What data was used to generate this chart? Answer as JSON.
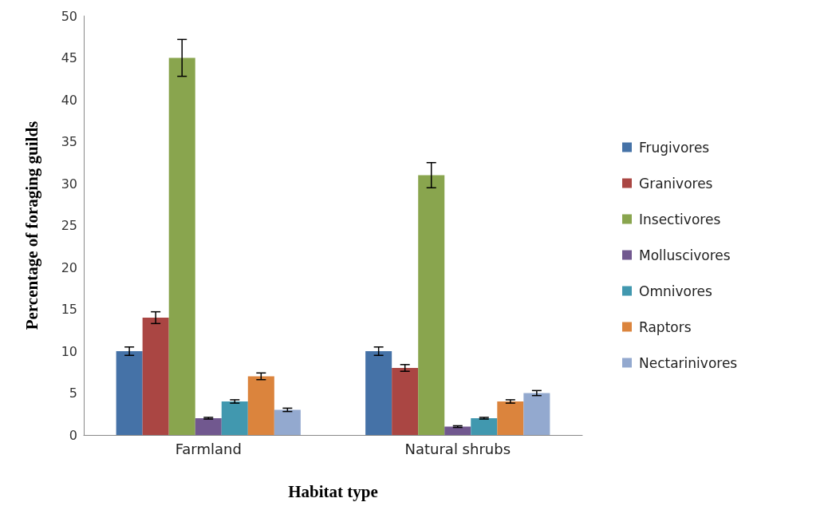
{
  "chart_data": {
    "type": "bar",
    "xlabel": "Habitat type",
    "ylabel": "Percentage of foraging guilds",
    "categories": [
      "Farmland",
      "Natural shrubs"
    ],
    "series": [
      {
        "name": "Frugivores",
        "color": "#4572a7",
        "values": [
          10,
          10
        ],
        "errors": [
          0.5,
          0.5
        ]
      },
      {
        "name": "Granivores",
        "color": "#aa4643",
        "values": [
          14,
          8
        ],
        "errors": [
          0.7,
          0.4
        ]
      },
      {
        "name": "Insectivores",
        "color": "#89a54e",
        "values": [
          45,
          31
        ],
        "errors": [
          2.2,
          1.5
        ]
      },
      {
        "name": "Molluscivores",
        "color": "#71588f",
        "values": [
          2,
          1
        ],
        "errors": [
          0.1,
          0.1
        ]
      },
      {
        "name": "Omnivores",
        "color": "#4198af",
        "values": [
          4,
          2
        ],
        "errors": [
          0.2,
          0.1
        ]
      },
      {
        "name": "Raptors",
        "color": "#db843d",
        "values": [
          7,
          4
        ],
        "errors": [
          0.4,
          0.2
        ]
      },
      {
        "name": "Nectarinivores",
        "color": "#93a9cf",
        "values": [
          3,
          5
        ],
        "errors": [
          0.2,
          0.3
        ]
      }
    ],
    "ylim": [
      0,
      50
    ],
    "yticks": [
      0,
      5,
      10,
      15,
      20,
      25,
      30,
      35,
      40,
      45,
      50
    ],
    "grid": false,
    "legend": "right"
  }
}
